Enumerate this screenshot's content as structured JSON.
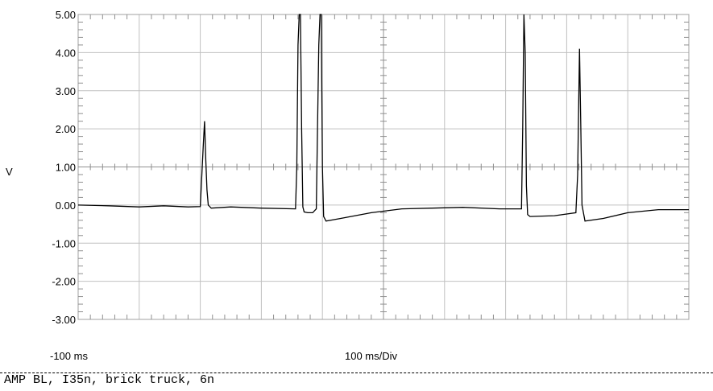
{
  "chart_data": {
    "type": "line",
    "ylabel": "V",
    "ylim": [
      -3,
      5
    ],
    "y_ticks": [
      "5.00",
      "4.00",
      "3.00",
      "2.00",
      "1.00",
      "0.00",
      "-1.00",
      "-2.00",
      "-3.00"
    ],
    "x_start_label": "-100 ms",
    "x_scale_label": "100 ms/Div",
    "xlim": [
      -100,
      900
    ],
    "grid": true,
    "series": [
      {
        "color": "#000000",
        "points": [
          [
            -100,
            0.0
          ],
          [
            -50,
            -0.02
          ],
          [
            0,
            -0.05
          ],
          [
            40,
            -0.02
          ],
          [
            80,
            -0.05
          ],
          [
            100,
            -0.04
          ],
          [
            105,
            1.6
          ],
          [
            107,
            2.2
          ],
          [
            109,
            1.2
          ],
          [
            111,
            0.4
          ],
          [
            113,
            0.0
          ],
          [
            118,
            -0.08
          ],
          [
            150,
            -0.05
          ],
          [
            200,
            -0.08
          ],
          [
            256,
            -0.1
          ],
          [
            258,
            1.0
          ],
          [
            260,
            4.2
          ],
          [
            262,
            5.0
          ],
          [
            264,
            5.0
          ],
          [
            266,
            2.0
          ],
          [
            268,
            -0.05
          ],
          [
            270,
            -0.18
          ],
          [
            276,
            -0.2
          ],
          [
            284,
            -0.2
          ],
          [
            290,
            -0.1
          ],
          [
            292,
            2.0
          ],
          [
            294,
            4.2
          ],
          [
            296,
            5.0
          ],
          [
            298,
            5.0
          ],
          [
            300,
            1.0
          ],
          [
            302,
            -0.3
          ],
          [
            306,
            -0.42
          ],
          [
            330,
            -0.35
          ],
          [
            380,
            -0.2
          ],
          [
            430,
            -0.1
          ],
          [
            480,
            -0.08
          ],
          [
            530,
            -0.06
          ],
          [
            590,
            -0.1
          ],
          [
            626,
            -0.1
          ],
          [
            628,
            2.0
          ],
          [
            630,
            5.0
          ],
          [
            632,
            4.0
          ],
          [
            634,
            0.5
          ],
          [
            636,
            -0.25
          ],
          [
            640,
            -0.3
          ],
          [
            680,
            -0.28
          ],
          [
            715,
            -0.2
          ],
          [
            718,
            0.8
          ],
          [
            721,
            4.1
          ],
          [
            723,
            2.2
          ],
          [
            725,
            0.0
          ],
          [
            730,
            -0.42
          ],
          [
            760,
            -0.35
          ],
          [
            800,
            -0.2
          ],
          [
            850,
            -0.12
          ],
          [
            900,
            -0.12
          ]
        ]
      }
    ]
  },
  "caption": "AMP BL, I35n, brick truck, 6n"
}
